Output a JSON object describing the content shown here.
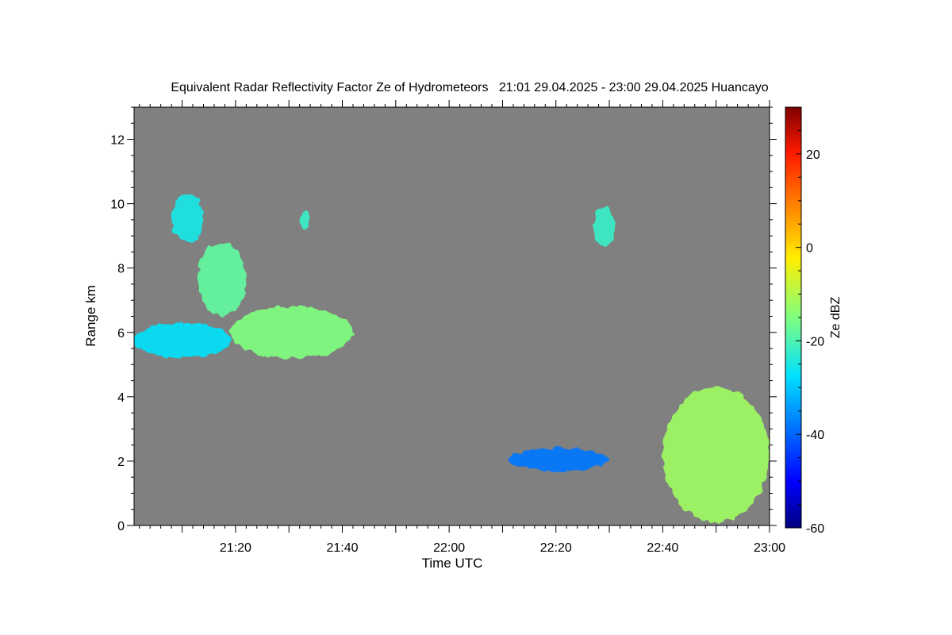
{
  "chart_data": {
    "type": "heatmap",
    "title": "Equivalent Radar Reflectivity Factor Ze of Hydrometeors   21:01 29.04.2025 - 23:00 29.04.2025 Huancayo",
    "xlabel": "Time UTC",
    "ylabel": "Range km",
    "xlim_minutes": [
      1261,
      1380
    ],
    "ylim": [
      0,
      13
    ],
    "x_ticks": [
      {
        "label": "21:20",
        "minutes": 1280
      },
      {
        "label": "21:40",
        "minutes": 1300
      },
      {
        "label": "22:00",
        "minutes": 1320
      },
      {
        "label": "22:20",
        "minutes": 1340
      },
      {
        "label": "22:40",
        "minutes": 1360
      },
      {
        "label": "23:00",
        "minutes": 1380
      }
    ],
    "y_ticks": [
      "0",
      "2",
      "4",
      "6",
      "8",
      "10",
      "12"
    ],
    "y_tick_values": [
      0,
      2,
      4,
      6,
      8,
      10,
      12
    ],
    "background_color": "#808080",
    "colorbar": {
      "label": "Ze dBZ",
      "range": [
        -60,
        30
      ],
      "ticks": [
        "20",
        "0",
        "-20",
        "-40",
        "-60"
      ],
      "tick_values": [
        20,
        0,
        -20,
        -40,
        -60
      ],
      "colormap": "jet"
    },
    "echoes": [
      {
        "name": "upper-cloud-left",
        "time": [
          "21:08",
          "21:14"
        ],
        "range_km": [
          8.8,
          10.3
        ],
        "ze_dbz": -25
      },
      {
        "name": "upper-cloud-small",
        "time": [
          "21:32",
          "21:34"
        ],
        "range_km": [
          9.2,
          9.8
        ],
        "ze_dbz": -22
      },
      {
        "name": "upper-cloud-right",
        "time": [
          "22:27",
          "22:31"
        ],
        "range_km": [
          8.7,
          9.9
        ],
        "ze_dbz": -22
      },
      {
        "name": "mid-layer-main",
        "time": [
          "21:19",
          "21:42"
        ],
        "range_km": [
          5.2,
          6.8
        ],
        "ze_dbz": -15
      },
      {
        "name": "descending-band",
        "time": [
          "21:13",
          "21:22"
        ],
        "range_km": [
          6.5,
          8.8
        ],
        "ze_dbz": -18
      },
      {
        "name": "mid-layer-left",
        "time": [
          "21:01",
          "21:19"
        ],
        "range_km": [
          5.2,
          6.3
        ],
        "ze_dbz": -27
      },
      {
        "name": "low-layer-22h",
        "time": [
          "22:11",
          "22:30"
        ],
        "range_km": [
          1.7,
          2.4
        ],
        "ze_dbz": -38
      },
      {
        "name": "precipitation-cell",
        "time": [
          "22:40",
          "23:00"
        ],
        "range_km": [
          0.1,
          4.3
        ],
        "ze_dbz": -12
      }
    ]
  }
}
